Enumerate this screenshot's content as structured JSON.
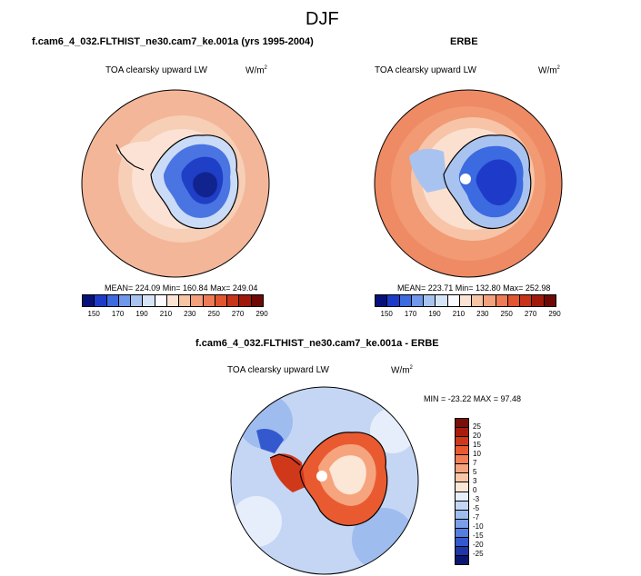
{
  "page": {
    "title": "DJF"
  },
  "panel_model": {
    "case_title": "f.cam6_4_032.FLTHIST_ne30.cam7_ke.001a (yrs 1995-2004)",
    "variable": "TOA clearsky upward LW",
    "units": "W/m",
    "units_exp": "2",
    "stats": "MEAN= 224.09   Min= 160.84   Max= 249.04"
  },
  "panel_obs": {
    "case_title": "ERBE",
    "variable": "TOA clearsky upward LW",
    "units": "W/m",
    "units_exp": "2",
    "stats": "MEAN= 223.71   Min= 132.80   Max= 252.98"
  },
  "panel_diff": {
    "case_title": "f.cam6_4_032.FLTHIST_ne30.cam7_ke.001a - ERBE",
    "variable": "TOA clearsky upward LW",
    "units": "W/m",
    "units_exp": "2",
    "stats": "MIN = -23.22  MAX =  97.48"
  },
  "abs_colorbar": {
    "labels": [
      "150",
      "170",
      "190",
      "210",
      "230",
      "250",
      "270",
      "290"
    ],
    "colors": [
      "#08107a",
      "#1d3bc8",
      "#3c6ae0",
      "#6f97ea",
      "#a9c3f0",
      "#d6e4f8",
      "#fbfbff",
      "#fbe4d4",
      "#f7c4a4",
      "#f3a07c",
      "#ee7b55",
      "#e2552f",
      "#c8341a",
      "#a01a0c",
      "#6e0a06"
    ]
  },
  "diff_colorbar": {
    "labels": [
      "25",
      "20",
      "15",
      "10",
      "7",
      "5",
      "3",
      "0",
      "-3",
      "-5",
      "-7",
      "-10",
      "-15",
      "-20",
      "-25"
    ],
    "colors": [
      "#7a0e08",
      "#a81c0c",
      "#d0381a",
      "#ea5a30",
      "#f27f56",
      "#f6a47e",
      "#f9c7a8",
      "#fce6d6",
      "#e6eefb",
      "#c4d6f4",
      "#9fbcee",
      "#7a9fe8",
      "#557fdf",
      "#3459cf",
      "#1e36a8",
      "#0b1670"
    ]
  }
}
